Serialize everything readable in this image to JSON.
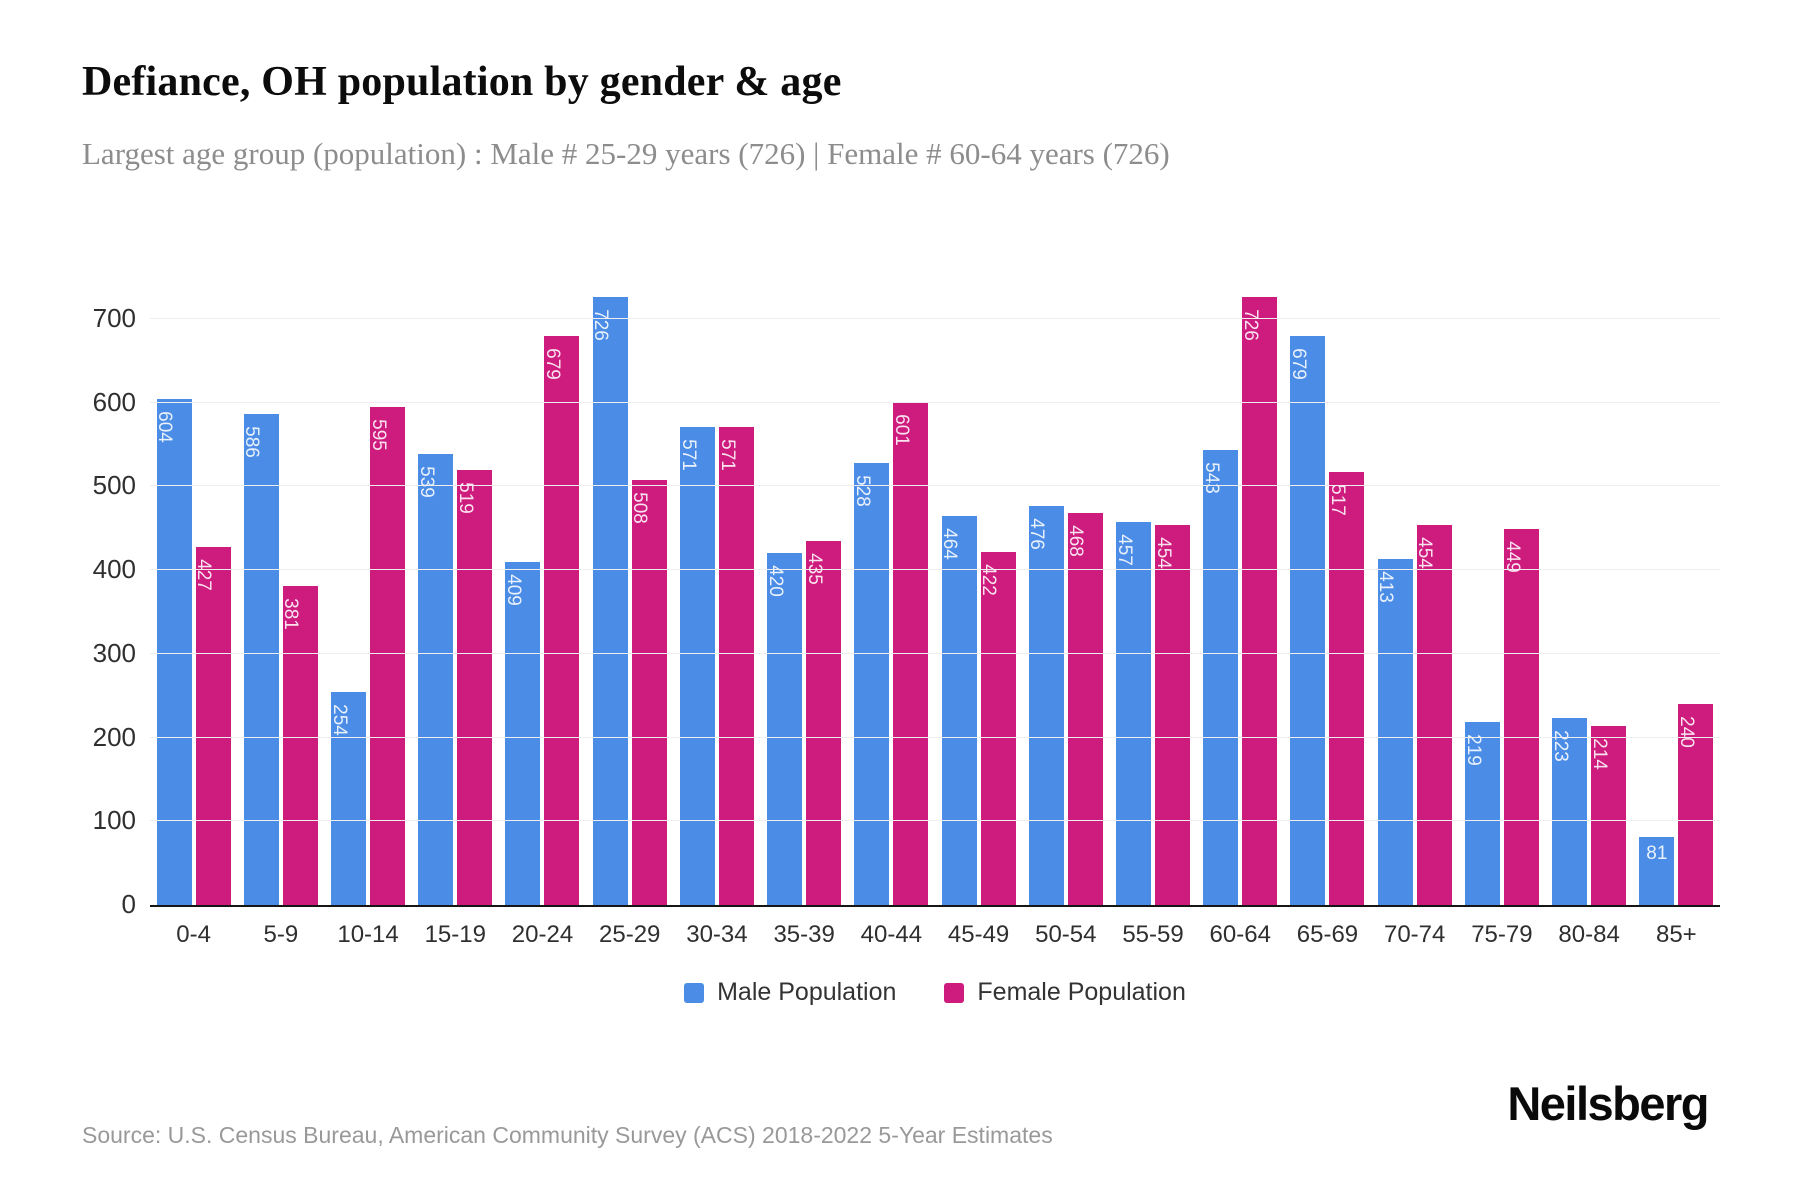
{
  "chart_data": {
    "type": "bar",
    "title": "Defiance, OH population by gender & age",
    "subtitle": "Largest age group (population) : Male # 25-29 years (726) | Female # 60-64 years (726)",
    "categories": [
      "0-4",
      "5-9",
      "10-14",
      "15-19",
      "20-24",
      "25-29",
      "30-34",
      "35-39",
      "40-44",
      "45-49",
      "50-54",
      "55-59",
      "60-64",
      "65-69",
      "70-74",
      "75-79",
      "80-84",
      "85+"
    ],
    "series": [
      {
        "name": "Male Population",
        "color": "#4a8ce6",
        "values": [
          604,
          586,
          254,
          539,
          409,
          726,
          571,
          420,
          528,
          464,
          476,
          457,
          543,
          679,
          413,
          219,
          223,
          81
        ]
      },
      {
        "name": "Female Population",
        "color": "#ce1b7e",
        "values": [
          427,
          381,
          595,
          519,
          679,
          508,
          571,
          435,
          601,
          422,
          468,
          454,
          726,
          517,
          454,
          449,
          214,
          240
        ]
      }
    ],
    "xlabel": "",
    "ylabel": "",
    "yticks": [
      0,
      100,
      200,
      300,
      400,
      500,
      600,
      700
    ],
    "ymax": 726,
    "grid": true,
    "legend_position": "bottom",
    "value_labels": "inside-top, rotated 90deg, white; horizontal when bar too short"
  },
  "colors": {
    "male": "#4a8ce6",
    "female": "#ce1b7e",
    "gridline": "#f0edef",
    "axis_line": "#161616",
    "tick_text": "#2f2f2f",
    "title_text": "#0c0c0c",
    "subtitle_text": "#8d8d8d",
    "source_text": "#999999"
  },
  "footer": {
    "source": "Source: U.S. Census Bureau, American Community Survey (ACS) 2018-2022 5-Year Estimates",
    "brand": "Neilsberg"
  }
}
